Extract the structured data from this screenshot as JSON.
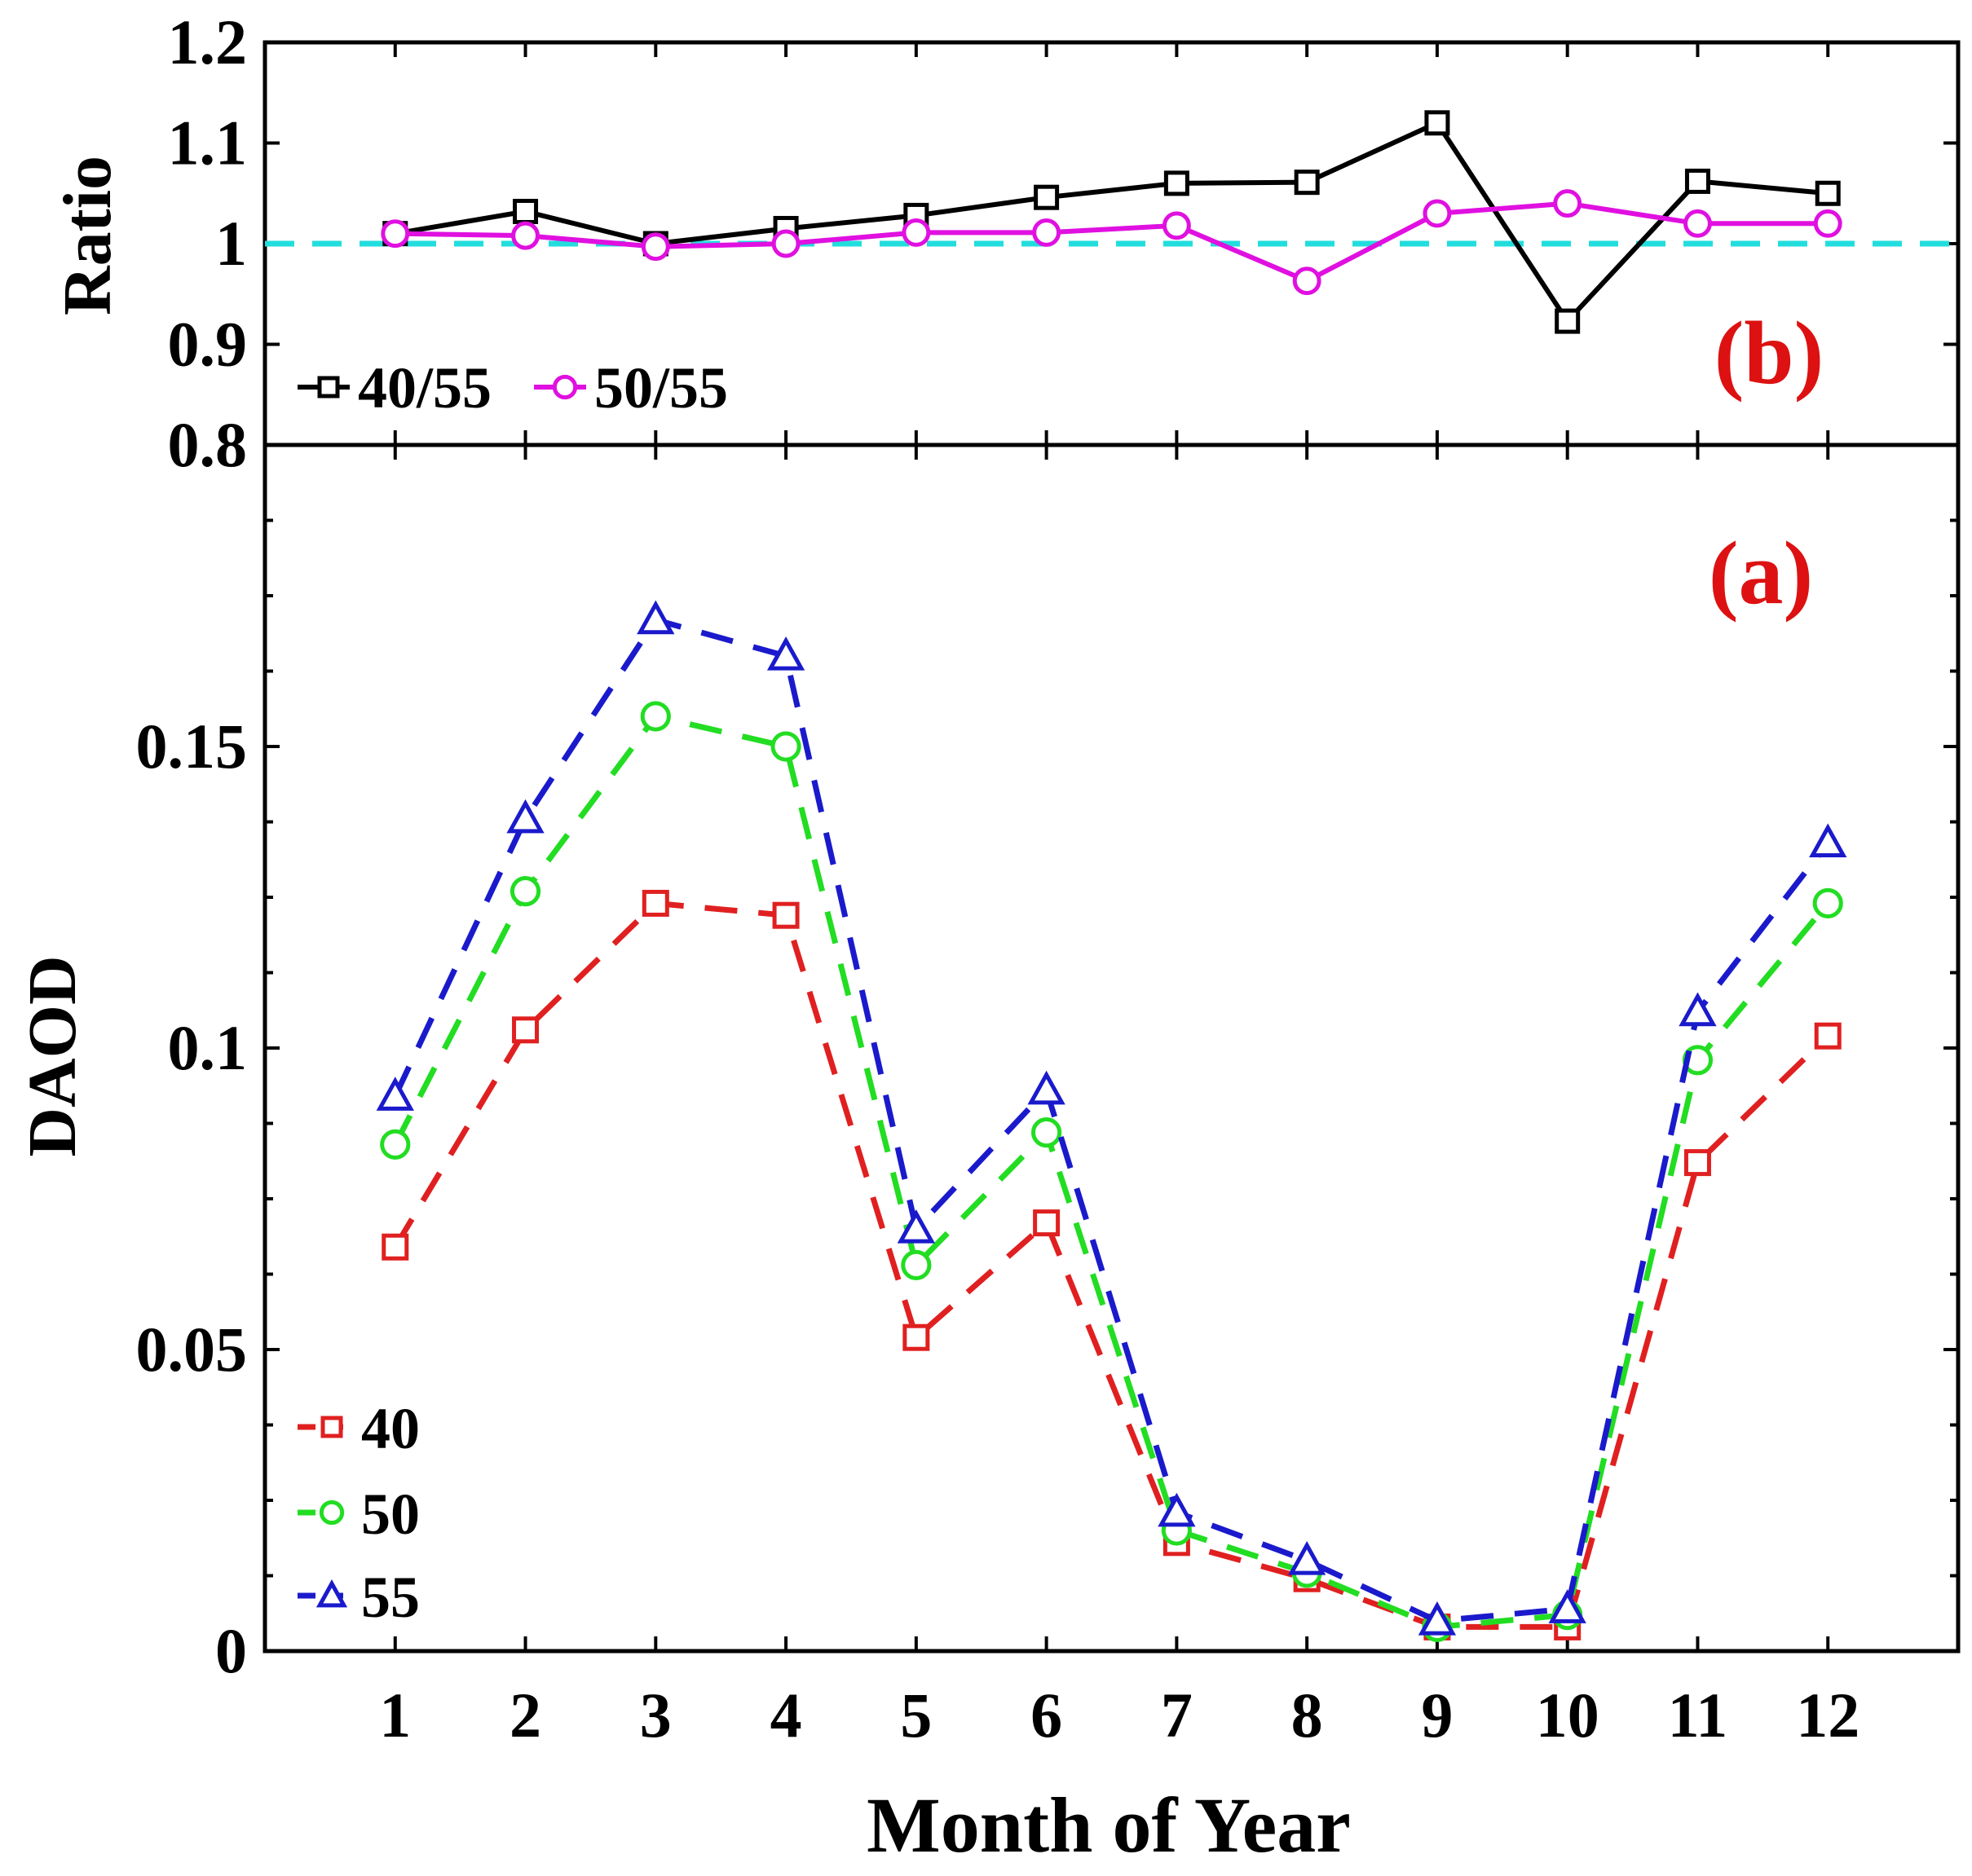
{
  "chart_data": [
    {
      "panel": "(b)",
      "type": "line",
      "ylabel": "Ratio",
      "ylim": [
        0.8,
        1.2
      ],
      "yticks": [
        "0.8",
        "0.9",
        "1",
        "1.1",
        "1.2"
      ],
      "x": [
        1,
        2,
        3,
        4,
        5,
        6,
        7,
        8,
        9,
        10,
        11,
        12
      ],
      "reference_line": 1.0,
      "legend": "bottom-left",
      "series": [
        {
          "name": "40/55",
          "color": "#000000",
          "marker": "square",
          "linestyle": "solid",
          "values": [
            1.01,
            1.032,
            1.0,
            1.015,
            1.028,
            1.046,
            1.06,
            1.061,
            1.12,
            0.923,
            1.062,
            1.05
          ]
        },
        {
          "name": "50/55",
          "color": "#e010e0",
          "marker": "circle",
          "linestyle": "solid",
          "values": [
            1.01,
            1.008,
            0.997,
            1.0,
            1.011,
            1.011,
            1.018,
            0.963,
            1.03,
            1.04,
            1.02,
            1.02
          ]
        }
      ]
    },
    {
      "panel": "(a)",
      "type": "line",
      "xlabel": "Month of Year",
      "ylabel": "DAOD",
      "ylim": [
        0,
        0.2
      ],
      "yticks": [
        "0",
        "0.05",
        "0.1",
        "0.15"
      ],
      "x": [
        1,
        2,
        3,
        4,
        5,
        6,
        7,
        8,
        9,
        10,
        11,
        12
      ],
      "xticks": [
        "1",
        "2",
        "3",
        "4",
        "5",
        "6",
        "7",
        "8",
        "9",
        "10",
        "11",
        "12"
      ],
      "legend": "bottom-left",
      "series": [
        {
          "name": "40",
          "color": "#e02020",
          "marker": "square",
          "linestyle": "dashed",
          "values": [
            0.067,
            0.103,
            0.124,
            0.122,
            0.052,
            0.071,
            0.018,
            0.012,
            0.004,
            0.004,
            0.081,
            0.102
          ]
        },
        {
          "name": "50",
          "color": "#22dd22",
          "marker": "circle",
          "linestyle": "dashed",
          "values": [
            0.084,
            0.126,
            0.155,
            0.15,
            0.064,
            0.086,
            0.02,
            0.013,
            0.004,
            0.006,
            0.098,
            0.124
          ]
        },
        {
          "name": "55",
          "color": "#1a1acc",
          "marker": "triangle",
          "linestyle": "dashed",
          "values": [
            0.092,
            0.138,
            0.171,
            0.165,
            0.07,
            0.093,
            0.023,
            0.015,
            0.005,
            0.007,
            0.106,
            0.134
          ]
        }
      ]
    }
  ],
  "reference_color": "#22dddd",
  "panel_label_color": "#dd1111"
}
